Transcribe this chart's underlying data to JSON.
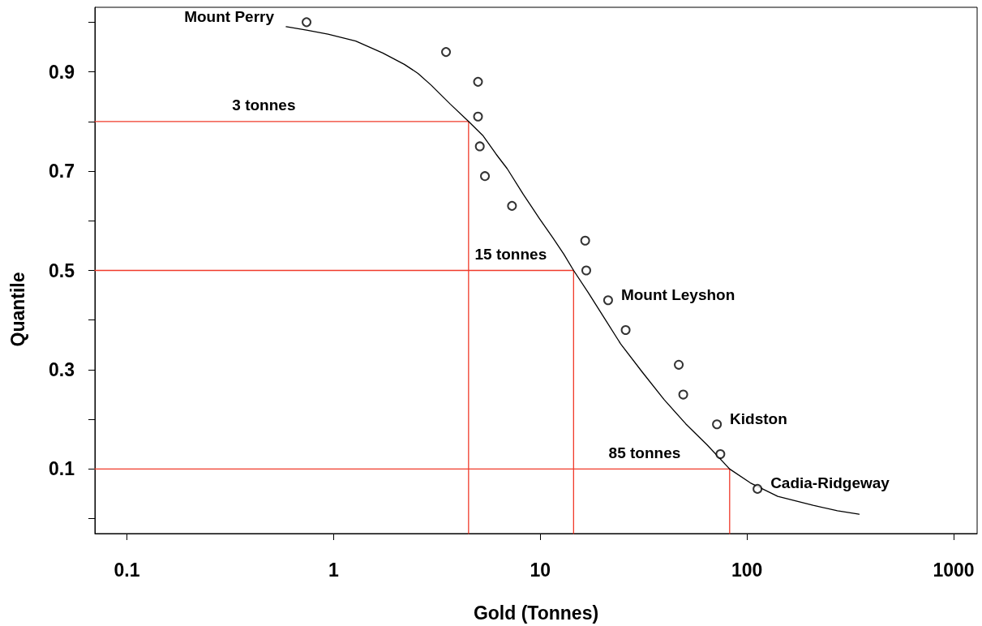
{
  "chart_data": {
    "type": "scatter",
    "xlabel": "Gold (Tonnes)",
    "ylabel": "Quantile",
    "log": "x",
    "xlim": [
      0.07,
      1300
    ],
    "ylim": [
      -0.03,
      1.03
    ],
    "xticks": [
      0.1,
      1,
      10,
      100,
      1000
    ],
    "yticks": [
      {
        "value": 0,
        "label": null
      },
      0.1,
      {
        "value": 0.2,
        "label": null
      },
      0.3,
      {
        "value": 0.4,
        "label": null
      },
      0.5,
      {
        "value": 0.6,
        "label": null
      },
      0.7,
      {
        "value": 0.8,
        "label": null
      },
      0.9,
      {
        "value": 1,
        "label": null
      }
    ],
    "series": [
      {
        "type": "line",
        "color": "#f03a2a",
        "x": [
          0.07,
          4.5,
          4.5
        ],
        "values": [
          0.8,
          0.8,
          -0.03
        ]
      },
      {
        "type": "line",
        "color": "#f03a2a",
        "x": [
          0.07,
          14.5,
          14.5
        ],
        "values": [
          0.5,
          0.5,
          -0.03
        ]
      },
      {
        "type": "line",
        "color": "#f03a2a",
        "x": [
          0.07,
          82.5,
          82.5
        ],
        "values": [
          0.1,
          0.1,
          -0.03
        ]
      },
      {
        "type": "line",
        "color": "#000000",
        "x": [
          0.59,
          0.74,
          0.94,
          1.28,
          1.73,
          2.2,
          2.56,
          2.97,
          3.67,
          4.5,
          5.27,
          6.12,
          6.92,
          8.29,
          9.93,
          11.5,
          13.0,
          14.5,
          17.1,
          20.5,
          24.5,
          31.2,
          39.7,
          50.6,
          64.4,
          82.5,
          104,
          141,
          209,
          274,
          349
        ],
        "values": [
          0.991,
          0.984,
          0.976,
          0.962,
          0.938,
          0.915,
          0.897,
          0.873,
          0.835,
          0.8,
          0.772,
          0.734,
          0.705,
          0.653,
          0.604,
          0.566,
          0.533,
          0.5,
          0.455,
          0.403,
          0.352,
          0.295,
          0.24,
          0.191,
          0.148,
          0.1,
          0.072,
          0.045,
          0.027,
          0.016,
          0.009
        ]
      },
      {
        "color": "#000000",
        "marker": "circle",
        "x": [
          0.74,
          3.5,
          5.0,
          5.0,
          5.1,
          5.4,
          7.3,
          16.5,
          16.7,
          21.3,
          25.9,
          46.8,
          49.2,
          71.6,
          74.4,
          112.5
        ],
        "values": [
          1.0,
          0.94,
          0.88,
          0.81,
          0.75,
          0.69,
          0.63,
          0.56,
          0.5,
          0.44,
          0.38,
          0.31,
          0.25,
          0.19,
          0.13,
          0.06
        ]
      }
    ],
    "annotations": [
      {
        "text": "3 tonnes",
        "x": 0.46,
        "y": 0.8
      },
      {
        "text": "15 tonnes",
        "x": 7.2,
        "y": 0.5
      },
      {
        "text": "85 tonnes",
        "x": 32,
        "y": 0.1
      },
      {
        "text": "Mount Perry",
        "x": 0.74,
        "y": 1.0
      },
      {
        "text": "Mount Leyshon",
        "x": 21.3,
        "y": 0.44
      },
      {
        "text": "Kidston",
        "x": 71.6,
        "y": 0.19
      },
      {
        "text": "Cadia-Ridgeway",
        "x": 112.5,
        "y": 0.06
      }
    ]
  }
}
